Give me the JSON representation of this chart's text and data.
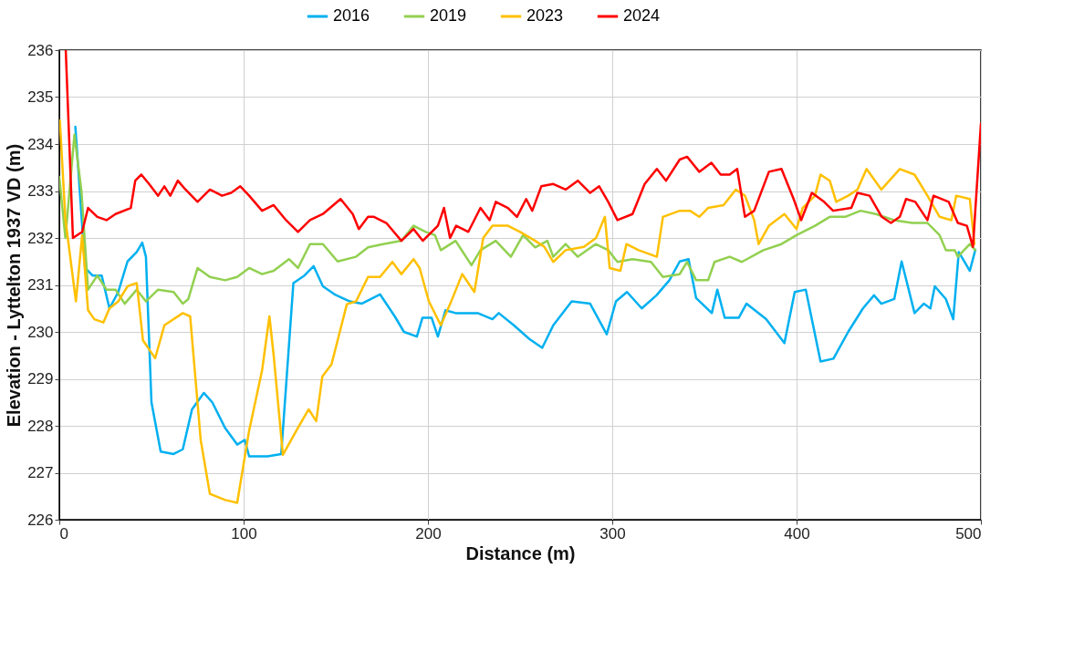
{
  "chart_data": {
    "type": "line",
    "xlabel": "Distance (m)",
    "ylabel": "Elevation - Lyttelton 1937 VD (m)",
    "xlim": [
      0,
      500
    ],
    "xticks": [
      0,
      100,
      200,
      300,
      400,
      500
    ],
    "ylim": [
      226,
      236
    ],
    "yticks": [
      226,
      227,
      228,
      229,
      230,
      231,
      232,
      233,
      234,
      235,
      236
    ],
    "grid": true,
    "legend": "top",
    "series": [
      {
        "name": "2016",
        "color": "#00b0f0",
        "x": [
          8.7,
          14,
          18,
          23,
          27.2,
          32,
          37,
          42,
          45,
          47,
          50,
          55,
          62,
          67,
          72,
          78.4,
          83,
          90,
          96.5,
          100.6,
          103,
          113,
          120.4,
          127,
          133,
          138,
          143,
          149.3,
          157.6,
          164,
          174,
          182,
          187,
          194,
          197,
          202,
          205.4,
          209.5,
          215,
          227,
          235,
          238.4,
          246.6,
          255,
          262,
          268,
          278,
          288,
          297,
          302,
          308,
          316,
          324,
          331,
          336.6,
          341.4,
          345.5,
          354,
          357,
          361,
          368.6,
          372.8,
          383.5,
          393.4,
          399,
          405,
          413,
          420,
          428,
          436,
          442,
          446,
          453,
          457,
          464,
          469,
          472.6,
          475,
          481,
          485,
          488,
          494,
          497
        ],
        "values": [
          234.37,
          231.36,
          231.2,
          231.2,
          230.5,
          230.85,
          231.5,
          231.7,
          231.9,
          231.6,
          228.5,
          227.45,
          227.4,
          227.5,
          228.35,
          228.7,
          228.5,
          227.95,
          227.6,
          227.7,
          227.35,
          227.35,
          227.4,
          231.04,
          231.2,
          231.4,
          230.97,
          230.8,
          230.65,
          230.6,
          230.8,
          230.33,
          230.0,
          229.9,
          230.3,
          230.3,
          229.9,
          230.46,
          230.4,
          230.4,
          230.27,
          230.4,
          230.14,
          229.85,
          229.66,
          230.14,
          230.65,
          230.6,
          229.95,
          230.65,
          230.85,
          230.5,
          230.78,
          231.1,
          231.5,
          231.55,
          230.72,
          230.4,
          230.9,
          230.3,
          230.3,
          230.6,
          230.27,
          229.76,
          230.85,
          230.9,
          229.37,
          229.43,
          230.0,
          230.5,
          230.78,
          230.6,
          230.7,
          231.5,
          230.4,
          230.6,
          230.5,
          230.97,
          230.7,
          230.27,
          231.7,
          231.3,
          231.75
        ]
      },
      {
        "name": "2019",
        "color": "#92d050",
        "x": [
          0,
          3.3,
          8.2,
          12,
          15.6,
          20.6,
          25.6,
          30.5,
          35.5,
          42,
          47,
          53.6,
          62,
          67,
          70,
          75,
          81.7,
          90,
          96.5,
          103,
          110,
          116.3,
          124.6,
          129.5,
          136,
          143,
          151,
          161,
          167.5,
          175.7,
          185.6,
          192.2,
          198.8,
          203.8,
          207,
          215,
          223.6,
          228.5,
          236.8,
          245,
          251.6,
          258.2,
          264.8,
          268,
          274.7,
          281.3,
          291,
          297.8,
          302.8,
          311,
          321,
          327.5,
          336.6,
          340.6,
          345.5,
          352,
          355.5,
          363.7,
          370.3,
          382,
          391.8,
          400,
          410,
          418,
          426.4,
          434.7,
          443,
          452.8,
          462.7,
          471,
          477.6,
          481,
          485.8,
          487.5,
          494,
          497
        ],
        "values": [
          233.3,
          232.0,
          234.2,
          233.0,
          230.9,
          231.2,
          230.9,
          230.9,
          230.6,
          230.9,
          230.65,
          230.9,
          230.85,
          230.6,
          230.7,
          231.36,
          231.17,
          231.1,
          231.17,
          231.36,
          231.23,
          231.3,
          231.55,
          231.36,
          231.87,
          231.87,
          231.5,
          231.6,
          231.8,
          231.87,
          231.94,
          232.26,
          232.13,
          232.06,
          231.74,
          231.94,
          231.42,
          231.74,
          231.94,
          231.6,
          232.06,
          231.8,
          231.94,
          231.6,
          231.87,
          231.6,
          231.87,
          231.74,
          231.49,
          231.55,
          231.49,
          231.17,
          231.23,
          231.49,
          231.1,
          231.1,
          231.49,
          231.6,
          231.49,
          231.74,
          231.87,
          232.06,
          232.26,
          232.45,
          232.45,
          232.58,
          232.51,
          232.38,
          232.32,
          232.32,
          232.06,
          231.74,
          231.74,
          231.6,
          231.87,
          231.74
        ]
      },
      {
        "name": "2023",
        "color": "#ffc000",
        "x": [
          0.3,
          3.3,
          9,
          12.4,
          15.6,
          19,
          23.9,
          27.2,
          32,
          37,
          42,
          45.4,
          52,
          57,
          67,
          71,
          76.7,
          81.7,
          90,
          96.5,
          103,
          110,
          114,
          116.3,
          121.3,
          129.5,
          135.3,
          139.4,
          142.7,
          147.7,
          156,
          161,
          167.5,
          174,
          180.7,
          185.6,
          192.2,
          195.5,
          200.5,
          207,
          212,
          218.6,
          225.2,
          230,
          235,
          243.4,
          250,
          258.2,
          263.2,
          268,
          274.7,
          284.6,
          291.2,
          296,
          298.6,
          304.4,
          307.7,
          314.3,
          324.2,
          327.5,
          336.6,
          342.2,
          347.2,
          352,
          360.4,
          367,
          372,
          377,
          379.4,
          385,
          393.4,
          400,
          403.3,
          410,
          413,
          418,
          421.5,
          428,
          433,
          438,
          446,
          456,
          464,
          471,
          477.6,
          484,
          486.6,
          494,
          496.5
        ],
        "values": [
          234.5,
          232.4,
          230.65,
          232.06,
          230.46,
          230.27,
          230.2,
          230.5,
          230.65,
          230.97,
          231.04,
          229.82,
          229.44,
          230.14,
          230.4,
          230.33,
          227.7,
          226.55,
          226.42,
          226.36,
          227.9,
          229.18,
          230.33,
          229.5,
          227.38,
          227.96,
          228.35,
          228.1,
          229.05,
          229.31,
          230.59,
          230.65,
          231.17,
          231.17,
          231.49,
          231.23,
          231.55,
          231.36,
          230.65,
          230.14,
          230.59,
          231.23,
          230.85,
          232.0,
          232.26,
          232.26,
          232.13,
          231.94,
          231.81,
          231.49,
          231.74,
          231.81,
          232.0,
          232.45,
          231.36,
          231.3,
          231.87,
          231.74,
          231.6,
          232.45,
          232.58,
          232.58,
          232.45,
          232.64,
          232.7,
          233.03,
          232.9,
          232.38,
          231.87,
          232.26,
          232.51,
          232.19,
          232.64,
          232.9,
          233.35,
          233.22,
          232.77,
          232.9,
          233.03,
          233.47,
          233.03,
          233.47,
          233.35,
          232.9,
          232.45,
          232.38,
          232.9,
          232.83,
          231.87
        ]
      },
      {
        "name": "2024",
        "color": "#ff0000",
        "x": [
          3.5,
          7.4,
          12.4,
          15.6,
          20.6,
          25.6,
          30.5,
          38.8,
          41.2,
          44.5,
          48.7,
          53.6,
          57,
          60.2,
          64.3,
          68.5,
          75,
          81.7,
          88.3,
          93.2,
          98.2,
          103,
          110,
          116.3,
          123,
          129.5,
          136,
          143,
          152.6,
          159.2,
          162.5,
          167.5,
          170.7,
          177.4,
          185.6,
          192.2,
          197.2,
          205.4,
          208.7,
          212,
          215.3,
          221.9,
          228.5,
          233.5,
          236.8,
          243.4,
          248.3,
          253.3,
          256.6,
          261.5,
          268,
          274.7,
          281.3,
          288,
          292.9,
          297.8,
          302.8,
          311,
          317.6,
          324.2,
          329.2,
          336.6,
          340.6,
          347.2,
          353.8,
          358.8,
          363.7,
          367.8,
          372,
          377,
          385,
          391.8,
          398.4,
          402.5,
          408.3,
          414.9,
          419.8,
          429.7,
          433,
          439.6,
          446.2,
          451.2,
          456,
          459.4,
          464.4,
          471,
          474.3,
          482.5,
          487.5,
          492.4,
          495.7,
          500
        ],
        "values": [
          236.0,
          232.0,
          232.13,
          232.64,
          232.45,
          232.38,
          232.51,
          232.64,
          233.22,
          233.35,
          233.15,
          232.9,
          233.1,
          232.9,
          233.22,
          233.03,
          232.77,
          233.03,
          232.9,
          232.96,
          233.1,
          232.9,
          232.58,
          232.7,
          232.38,
          232.13,
          232.38,
          232.51,
          232.83,
          232.51,
          232.19,
          232.45,
          232.45,
          232.32,
          231.94,
          232.19,
          231.94,
          232.26,
          232.64,
          232.0,
          232.26,
          232.13,
          232.64,
          232.38,
          232.77,
          232.64,
          232.45,
          232.83,
          232.58,
          233.1,
          233.15,
          233.03,
          233.22,
          232.96,
          233.1,
          232.77,
          232.38,
          232.51,
          233.15,
          233.47,
          233.22,
          233.67,
          233.73,
          233.41,
          233.6,
          233.35,
          233.35,
          233.47,
          232.45,
          232.58,
          233.41,
          233.47,
          232.83,
          232.38,
          232.96,
          232.77,
          232.58,
          232.64,
          232.96,
          232.9,
          232.45,
          232.32,
          232.45,
          232.83,
          232.77,
          232.38,
          232.9,
          232.77,
          232.32,
          232.26,
          231.81,
          234.43
        ]
      }
    ]
  }
}
